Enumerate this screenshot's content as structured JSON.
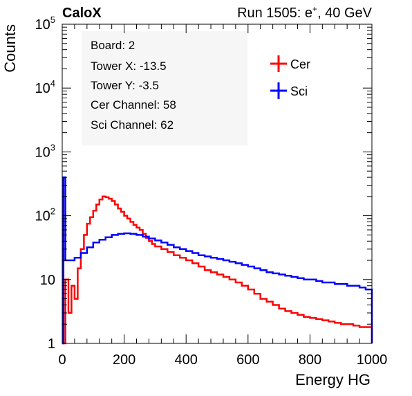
{
  "chart_data": {
    "type": "line",
    "title_left": "CaloX",
    "title_right": "Run 1505: e",
    "title_right_sup": "+",
    "title_right_tail": ", 40 GeV",
    "xlabel": "Energy HG",
    "ylabel": "Counts",
    "xlim": [
      0,
      1000
    ],
    "ylim": [
      1,
      100000
    ],
    "y_scale": "log",
    "x_ticks": [
      0,
      200,
      400,
      600,
      800,
      1000
    ],
    "y_ticks": [
      {
        "value": 1,
        "label": "1"
      },
      {
        "value": 10,
        "label": "10"
      },
      {
        "value": 100,
        "label": "10",
        "exp": "2"
      },
      {
        "value": 1000,
        "label": "10",
        "exp": "3"
      },
      {
        "value": 10000,
        "label": "10",
        "exp": "4"
      },
      {
        "value": 100000,
        "label": "10",
        "exp": "5"
      }
    ],
    "info_box": [
      "Board: 2",
      "Tower X: -13.5",
      "Tower Y: -3.5",
      "Cer Channel: 58",
      "Sci Channel: 62"
    ],
    "legend_position": "top-right",
    "series": [
      {
        "name": "Cer",
        "color": "#ff0000",
        "x": [
          0,
          10,
          20,
          30,
          40,
          50,
          60,
          70,
          80,
          90,
          100,
          110,
          120,
          130,
          140,
          150,
          160,
          170,
          180,
          190,
          200,
          210,
          220,
          230,
          240,
          250,
          260,
          270,
          280,
          290,
          300,
          320,
          340,
          360,
          380,
          400,
          420,
          440,
          460,
          480,
          500,
          520,
          540,
          560,
          580,
          600,
          620,
          640,
          660,
          680,
          700,
          720,
          740,
          760,
          780,
          800,
          820,
          840,
          860,
          880,
          900,
          920,
          940,
          960,
          980,
          1000
        ],
        "values": [
          1,
          10,
          3,
          8,
          5,
          15,
          30,
          50,
          75,
          95,
          120,
          150,
          180,
          200,
          195,
          185,
          170,
          150,
          130,
          115,
          100,
          90,
          80,
          72,
          65,
          60,
          52,
          45,
          40,
          36,
          33,
          30,
          27,
          24,
          22,
          20,
          18,
          16,
          14,
          13,
          12,
          11,
          10,
          9,
          8,
          7,
          6,
          5,
          4.5,
          4,
          3.5,
          3.2,
          3,
          2.8,
          2.6,
          2.5,
          2.4,
          2.3,
          2.2,
          2.1,
          2,
          2,
          1.9,
          1.8,
          1.8,
          1
        ]
      },
      {
        "name": "Sci",
        "color": "#0000ff",
        "x": [
          0,
          4,
          10,
          20,
          40,
          60,
          80,
          100,
          120,
          140,
          160,
          180,
          200,
          220,
          240,
          260,
          280,
          300,
          320,
          340,
          360,
          380,
          400,
          420,
          440,
          460,
          480,
          500,
          520,
          540,
          560,
          580,
          600,
          620,
          640,
          660,
          680,
          700,
          720,
          740,
          760,
          780,
          800,
          820,
          840,
          860,
          880,
          900,
          920,
          940,
          960,
          980,
          1000
        ],
        "values": [
          1,
          400,
          20,
          20,
          22,
          26,
          32,
          38,
          42,
          46,
          50,
          52,
          53,
          52,
          50,
          47,
          44,
          41,
          38,
          35,
          32,
          30,
          28,
          26,
          24,
          23,
          22,
          21,
          20,
          19,
          18,
          17,
          16,
          15,
          14,
          13,
          12.5,
          12,
          11.5,
          11,
          10.5,
          10,
          10,
          9.5,
          9,
          9,
          8.5,
          8.5,
          8,
          8,
          7.5,
          7,
          1
        ]
      }
    ]
  }
}
